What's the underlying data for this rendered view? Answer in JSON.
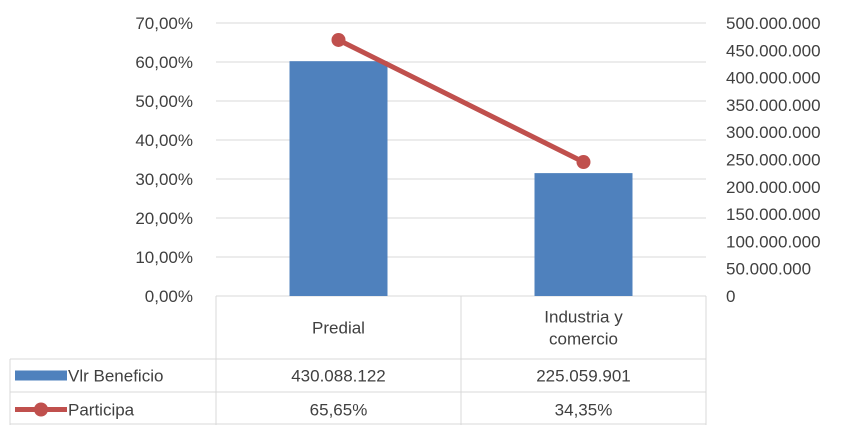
{
  "chart_data": {
    "type": "bar",
    "categories": [
      "Predial",
      "Industria y comercio"
    ],
    "category_lines": [
      [
        "Predial"
      ],
      [
        "Industria y",
        "comercio"
      ]
    ],
    "series": [
      {
        "name": "Vlr Beneficio",
        "kind": "bar",
        "axis": "right",
        "color": "#4F81BD",
        "values": [
          430088122,
          225059901
        ],
        "labels": [
          "430.088.122",
          "225.059.901"
        ]
      },
      {
        "name": "Participa",
        "kind": "line",
        "axis": "left",
        "color": "#C0504D",
        "values": [
          65.65,
          34.35
        ],
        "labels": [
          "65,65%",
          "34,35%"
        ]
      }
    ],
    "left_axis": {
      "ylim": [
        0,
        70
      ],
      "ticks": [
        "0,00%",
        "10,00%",
        "20,00%",
        "30,00%",
        "40,00%",
        "50,00%",
        "60,00%",
        "70,00%"
      ]
    },
    "right_axis": {
      "ylim": [
        0,
        500000000
      ],
      "ticks": [
        "0",
        "50.000.000",
        "100.000.000",
        "150.000.000",
        "200.000.000",
        "250.000.000",
        "300.000.000",
        "350.000.000",
        "400.000.000",
        "450.000.000",
        "500.000.000"
      ]
    },
    "grid": true,
    "legend": "data-table"
  }
}
